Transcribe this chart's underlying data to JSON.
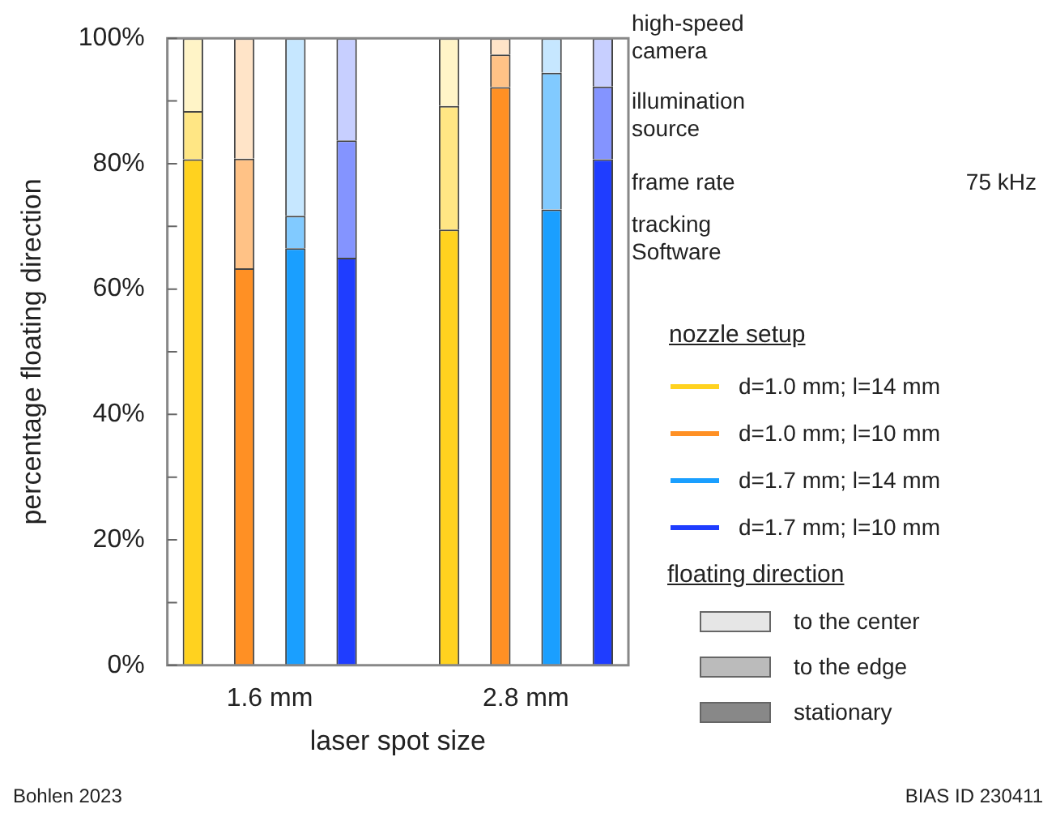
{
  "chart_data": {
    "type": "bar",
    "stacked": true,
    "xlabel": "laser spot size",
    "ylabel": "percentage floating direction",
    "categories": [
      null,
      "1.6 mm",
      null,
      null,
      null,
      null,
      "2.8 mm",
      null,
      null
    ],
    "series": [
      {
        "name": "stationary",
        "colors": [
          "#ffd21f",
          "#ff9024",
          "#1a9fff",
          "#1f3dff",
          null,
          "#ffd21f",
          "#ff9024",
          "#1a9fff",
          "#1f3dff"
        ],
        "values": [
          80.7,
          63.3,
          66.5,
          65.0,
          null,
          69.5,
          92.2,
          72.7,
          80.7
        ]
      },
      {
        "name": "to the edge",
        "colors": [
          "#ffe684",
          "#ffc286",
          "#81caff",
          "#8494ff",
          null,
          "#ffe684",
          "#ffc286",
          "#81caff",
          "#8494ff"
        ],
        "values": [
          7.7,
          17.5,
          5.2,
          18.7,
          null,
          19.7,
          5.2,
          21.8,
          11.6
        ]
      },
      {
        "name": "to the center",
        "colors": [
          "#fff4c7",
          "#ffe4c8",
          "#c6e7ff",
          "#c7cfff",
          null,
          "#fff4c7",
          "#ffe4c8",
          "#c6e7ff",
          "#c7cfff"
        ],
        "values": [
          11.6,
          19.2,
          28.3,
          16.3,
          null,
          10.8,
          2.6,
          5.5,
          7.7
        ]
      }
    ],
    "ylim": [
      0,
      100
    ],
    "yticks": [
      {
        "value": 0,
        "label": "0%"
      },
      {
        "value": 10,
        "label": null
      },
      {
        "value": 20,
        "label": "20%"
      },
      {
        "value": 30,
        "label": null
      },
      {
        "value": 40,
        "label": "40%"
      },
      {
        "value": 50,
        "label": null
      },
      {
        "value": 60,
        "label": "60%"
      },
      {
        "value": 70,
        "label": null
      },
      {
        "value": 80,
        "label": "80%"
      },
      {
        "value": 90,
        "label": null
      },
      {
        "value": 100,
        "label": "100%"
      }
    ],
    "legend": "right",
    "legend_title": "floating direction",
    "annotations": [
      "high-speed camera",
      "illumination source",
      "frame rate",
      "75 kHz",
      "tracking Software",
      "nozzle setup",
      "d=1.0 mm; l=14 mm",
      "d=1.0 mm; l=10 mm",
      "d=1.7 mm; l=14 mm",
      "d=1.7 mm; l=10 mm",
      "Bohlen 2023",
      "BIAS ID 230411"
    ]
  }
}
